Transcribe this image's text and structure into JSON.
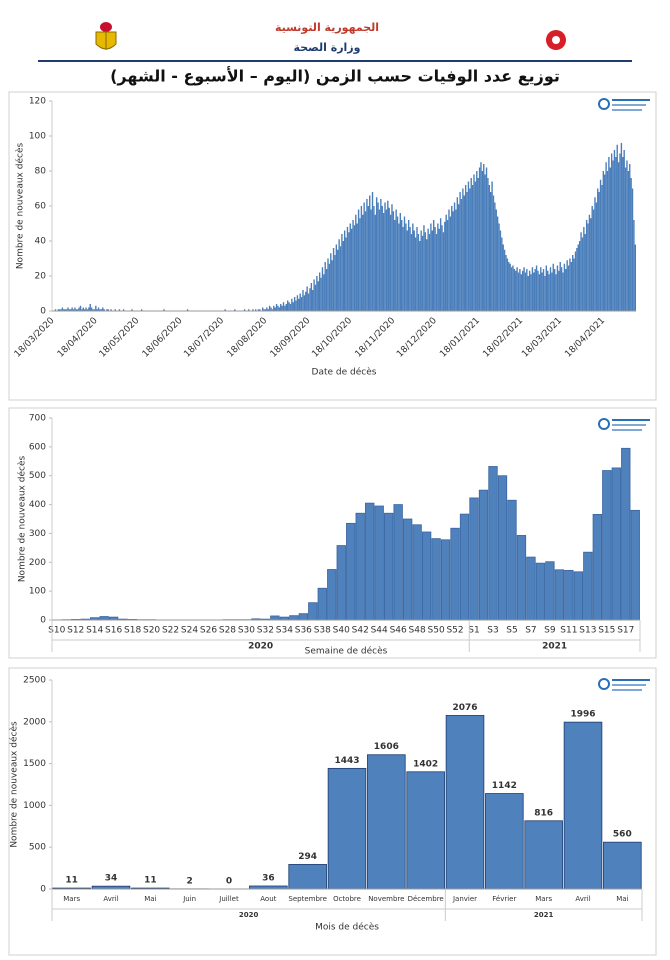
{
  "header": {
    "country": "الجمهورية التونسية",
    "ministry": "وزارة الصحة",
    "title": "توزيع عدد الوفيات حسب الزمن (اليوم – الأسبوع - الشهر)"
  },
  "chart_data": [
    {
      "type": "bar",
      "x_label": "Date de décès",
      "y_label": "Nombre de nouveaux décès",
      "color": "#4a7ebb",
      "ylim": [
        0,
        120
      ],
      "yticks": [
        0,
        20,
        40,
        60,
        80,
        100,
        120
      ],
      "categories": [
        "18/03/2020",
        null,
        null,
        null,
        null,
        null,
        null,
        null,
        null,
        null,
        null,
        null,
        null,
        null,
        null,
        null,
        null,
        null,
        null,
        null,
        null,
        null,
        null,
        null,
        null,
        null,
        null,
        null,
        null,
        null,
        null,
        "18/04/2020",
        null,
        null,
        null,
        null,
        null,
        null,
        null,
        null,
        null,
        null,
        null,
        null,
        null,
        null,
        null,
        null,
        null,
        null,
        null,
        null,
        null,
        null,
        null,
        null,
        null,
        null,
        null,
        null,
        null,
        "18/05/2020",
        null,
        null,
        null,
        null,
        null,
        null,
        null,
        null,
        null,
        null,
        null,
        null,
        null,
        null,
        null,
        null,
        null,
        null,
        null,
        null,
        null,
        null,
        null,
        null,
        null,
        null,
        null,
        null,
        null,
        null,
        "18/06/2020",
        null,
        null,
        null,
        null,
        null,
        null,
        null,
        null,
        null,
        null,
        null,
        null,
        null,
        null,
        null,
        null,
        null,
        null,
        null,
        null,
        null,
        null,
        null,
        null,
        null,
        null,
        null,
        null,
        null,
        "18/07/2020",
        null,
        null,
        null,
        null,
        null,
        null,
        null,
        null,
        null,
        null,
        null,
        null,
        null,
        null,
        null,
        null,
        null,
        null,
        null,
        null,
        null,
        null,
        null,
        null,
        null,
        null,
        null,
        null,
        null,
        null,
        "18/08/2020",
        null,
        null,
        null,
        null,
        null,
        null,
        null,
        null,
        null,
        null,
        null,
        null,
        null,
        null,
        null,
        null,
        null,
        null,
        null,
        null,
        null,
        null,
        null,
        null,
        null,
        null,
        null,
        null,
        null,
        null,
        "18/09/2020",
        null,
        null,
        null,
        null,
        null,
        null,
        null,
        null,
        null,
        null,
        null,
        null,
        null,
        null,
        null,
        null,
        null,
        null,
        null,
        null,
        null,
        null,
        null,
        null,
        null,
        null,
        null,
        null,
        null,
        "18/10/2020",
        null,
        null,
        null,
        null,
        null,
        null,
        null,
        null,
        null,
        null,
        null,
        null,
        null,
        null,
        null,
        null,
        null,
        null,
        null,
        null,
        null,
        null,
        null,
        null,
        null,
        null,
        null,
        null,
        null,
        null,
        "18/11/2020",
        null,
        null,
        null,
        null,
        null,
        null,
        null,
        null,
        null,
        null,
        null,
        null,
        null,
        null,
        null,
        null,
        null,
        null,
        null,
        null,
        null,
        null,
        null,
        null,
        null,
        null,
        null,
        null,
        null,
        "18/12/2020",
        null,
        null,
        null,
        null,
        null,
        null,
        null,
        null,
        null,
        null,
        null,
        null,
        null,
        null,
        null,
        null,
        null,
        null,
        null,
        null,
        null,
        null,
        null,
        null,
        null,
        null,
        null,
        null,
        null,
        null,
        "18/01/2021",
        null,
        null,
        null,
        null,
        null,
        null,
        null,
        null,
        null,
        null,
        null,
        null,
        null,
        null,
        null,
        null,
        null,
        null,
        null,
        null,
        null,
        null,
        null,
        null,
        null,
        null,
        null,
        null,
        null,
        null,
        "18/02/2021",
        null,
        null,
        null,
        null,
        null,
        null,
        null,
        null,
        null,
        null,
        null,
        null,
        null,
        null,
        null,
        null,
        null,
        null,
        null,
        null,
        null,
        null,
        null,
        null,
        null,
        null,
        null,
        "18/03/2021",
        null,
        null,
        null,
        null,
        null,
        null,
        null,
        null,
        null,
        null,
        null,
        null,
        null,
        null,
        null,
        null,
        null,
        null,
        null,
        null,
        null,
        null,
        null,
        null,
        null,
        null,
        null,
        null,
        null,
        null,
        "18/04/2021",
        null,
        null,
        null,
        null,
        null,
        null,
        null,
        null,
        null,
        null,
        null,
        null,
        null,
        null,
        null,
        null,
        null,
        null,
        null,
        null,
        null,
        null,
        null
      ],
      "values": [
        0,
        0,
        1,
        0,
        1,
        1,
        1,
        2,
        1,
        1,
        1,
        2,
        1,
        1,
        2,
        1,
        2,
        1,
        1,
        2,
        3,
        1,
        2,
        1,
        2,
        1,
        2,
        4,
        2,
        1,
        1,
        3,
        1,
        2,
        1,
        1,
        2,
        1,
        0,
        1,
        1,
        0,
        1,
        0,
        0,
        1,
        0,
        0,
        1,
        0,
        0,
        1,
        0,
        0,
        0,
        0,
        0,
        1,
        0,
        0,
        0,
        0,
        0,
        0,
        1,
        0,
        0,
        0,
        0,
        0,
        0,
        0,
        0,
        0,
        0,
        0,
        0,
        0,
        0,
        0,
        1,
        0,
        0,
        0,
        0,
        0,
        0,
        0,
        0,
        0,
        0,
        0,
        0,
        0,
        0,
        0,
        0,
        1,
        0,
        0,
        0,
        0,
        0,
        0,
        0,
        0,
        0,
        0,
        0,
        0,
        0,
        0,
        0,
        0,
        0,
        0,
        0,
        0,
        0,
        0,
        0,
        0,
        0,
        0,
        1,
        0,
        0,
        0,
        0,
        0,
        0,
        1,
        0,
        0,
        0,
        0,
        0,
        0,
        1,
        0,
        0,
        1,
        0,
        0,
        1,
        0,
        1,
        0,
        1,
        1,
        0,
        2,
        1,
        1,
        2,
        1,
        3,
        2,
        1,
        3,
        2,
        4,
        3,
        2,
        4,
        3,
        5,
        3,
        4,
        6,
        5,
        4,
        7,
        5,
        8,
        6,
        9,
        7,
        10,
        8,
        12,
        9,
        11,
        14,
        10,
        13,
        16,
        12,
        18,
        15,
        20,
        17,
        22,
        19,
        25,
        21,
        28,
        24,
        30,
        27,
        33,
        29,
        36,
        32,
        38,
        35,
        41,
        37,
        44,
        40,
        46,
        42,
        48,
        45,
        50,
        47,
        52,
        49,
        55,
        50,
        58,
        53,
        60,
        55,
        62,
        57,
        64,
        60,
        66,
        58,
        68,
        60,
        55,
        65,
        62,
        58,
        64,
        60,
        56,
        62,
        58,
        63,
        59,
        55,
        61,
        57,
        52,
        58,
        54,
        50,
        56,
        52,
        48,
        54,
        50,
        46,
        52,
        48,
        44,
        50,
        46,
        42,
        48,
        44,
        40,
        46,
        43,
        49,
        45,
        41,
        47,
        44,
        50,
        46,
        52,
        48,
        44,
        50,
        47,
        53,
        49,
        45,
        51,
        55,
        52,
        58,
        54,
        60,
        57,
        62,
        58,
        65,
        61,
        68,
        64,
        70,
        66,
        72,
        68,
        74,
        70,
        76,
        72,
        78,
        74,
        80,
        76,
        82,
        85,
        80,
        84,
        78,
        82,
        76,
        72,
        68,
        74,
        66,
        62,
        58,
        54,
        50,
        46,
        42,
        38,
        35,
        32,
        30,
        28,
        27,
        25,
        26,
        24,
        23,
        25,
        22,
        24,
        21,
        23,
        25,
        22,
        24,
        20,
        23,
        21,
        25,
        22,
        24,
        26,
        23,
        21,
        25,
        22,
        24,
        20,
        26,
        23,
        21,
        25,
        22,
        27,
        24,
        21,
        26,
        23,
        28,
        25,
        22,
        27,
        24,
        29,
        26,
        30,
        28,
        32,
        30,
        34,
        36,
        38,
        40,
        45,
        42,
        48,
        44,
        52,
        50,
        55,
        53,
        60,
        58,
        65,
        62,
        70,
        68,
        75,
        72,
        80,
        78,
        85,
        80,
        88,
        82,
        90,
        86,
        92,
        88,
        95,
        85,
        90,
        96,
        88,
        92,
        82,
        86,
        80,
        84,
        76,
        70,
        52,
        38
      ]
    },
    {
      "type": "bar",
      "x_label": "Semaine de décès",
      "y_label": "Nombre de nouveaux décès",
      "color": "#4f81bd",
      "edge_color": "#3a65a0",
      "ylim": [
        0,
        700
      ],
      "yticks": [
        0,
        100,
        200,
        300,
        400,
        500,
        600,
        700
      ],
      "groups": [
        {
          "label": "2020",
          "categories": [
            "S10",
            null,
            "S12",
            null,
            "S14",
            null,
            "S16",
            null,
            "S18",
            null,
            "S20",
            null,
            "S22",
            null,
            "S24",
            null,
            "S26",
            null,
            "S28",
            null,
            "S30",
            null,
            "S32",
            null,
            "S34",
            null,
            "S36",
            null,
            "S38",
            null,
            "S40",
            null,
            "S42",
            null,
            "S44",
            null,
            "S46",
            null,
            "S48",
            null,
            "S50",
            null,
            "S52",
            null
          ],
          "values": [
            0,
            1,
            2,
            3,
            8,
            12,
            10,
            3,
            2,
            1,
            1,
            0,
            0,
            0,
            0,
            0,
            0,
            0,
            1,
            1,
            1,
            4,
            3,
            14,
            10,
            15,
            22,
            60,
            110,
            175,
            258,
            335,
            370,
            405,
            395,
            370,
            400,
            350,
            330,
            305,
            282,
            278,
            318,
            367
          ]
        },
        {
          "label": "2021",
          "categories": [
            "S1",
            null,
            "S3",
            null,
            "S5",
            null,
            "S7",
            null,
            "S9",
            null,
            "S11",
            null,
            "S13",
            null,
            "S15",
            null,
            "S17",
            null
          ],
          "values": [
            423,
            450,
            532,
            500,
            415,
            293,
            218,
            197,
            202,
            174,
            172,
            167,
            235,
            366,
            518,
            527,
            595,
            380
          ]
        }
      ]
    },
    {
      "type": "bar",
      "x_label": "Mois de décès",
      "y_label": "Nombre de nouveaux décès",
      "color": "#4f81bd",
      "edge_color": "#1f3c6e",
      "data_labels": true,
      "ylim": [
        0,
        2500
      ],
      "yticks": [
        0,
        500,
        1000,
        1500,
        2000,
        2500
      ],
      "groups": [
        {
          "label": "2020",
          "categories": [
            "Mars",
            "Avril",
            "Mai",
            "Juin",
            "Juillet",
            "Aout",
            "Septembre",
            "Octobre",
            "Novembre",
            "Décembre"
          ],
          "values": [
            11,
            34,
            11,
            2,
            0,
            36,
            294,
            1443,
            1606,
            1402
          ]
        },
        {
          "label": "2021",
          "categories": [
            "Janvier",
            "Février",
            "Mars",
            "Avril",
            "Mai"
          ],
          "values": [
            2076,
            1142,
            816,
            1996,
            560
          ]
        }
      ]
    }
  ]
}
